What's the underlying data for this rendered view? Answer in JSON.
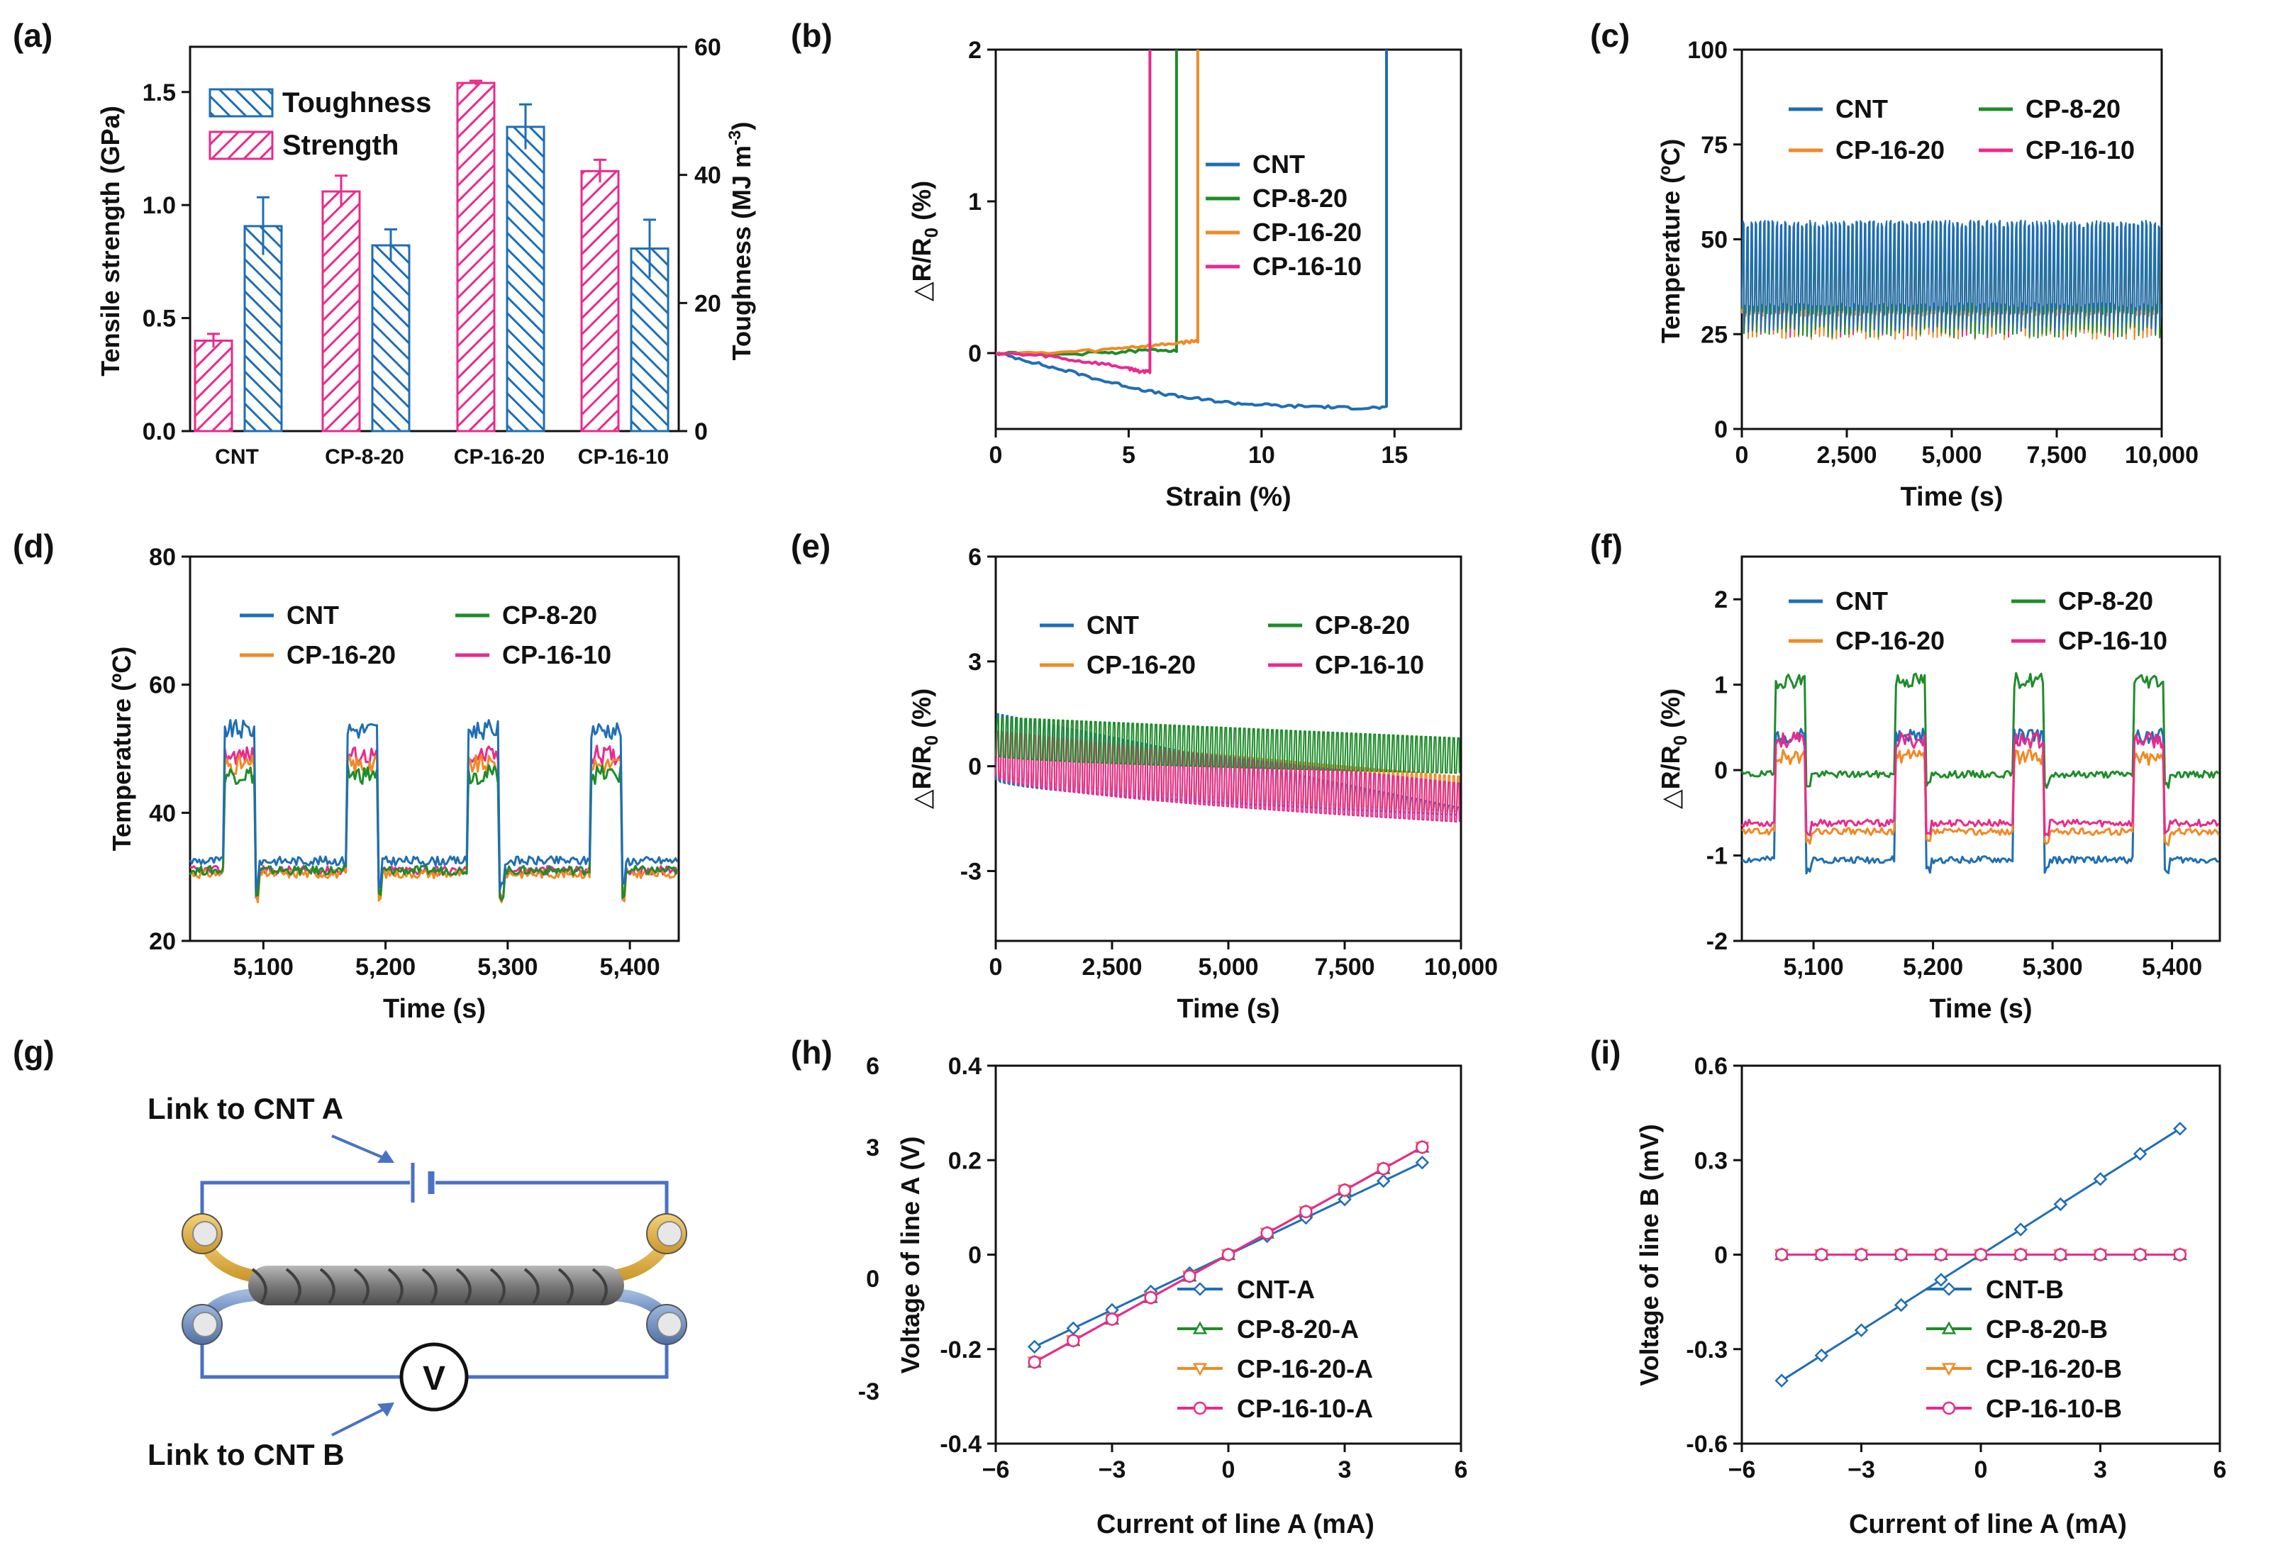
{
  "colors": {
    "CNT": "#1f6eb5",
    "CP-8-20": "#1e8c2a",
    "CP-16-20": "#f08a24",
    "CP-16-10": "#ea2a8c",
    "strength": "#ea2a8c",
    "toughness": "#1f6eb5",
    "wire": "#4a72c4"
  },
  "chart_data": [
    {
      "panel": "(a)",
      "type": "bar",
      "categories": [
        "CNT",
        "CP-8-20",
        "CP-16-20",
        "CP-16-10"
      ],
      "series": [
        {
          "name": "Strength",
          "axis": "left",
          "values": [
            0.4,
            1.06,
            1.54,
            1.15
          ],
          "errors": [
            0.03,
            0.07,
            0.01,
            0.05
          ]
        },
        {
          "name": "Toughness",
          "axis": "right",
          "values": [
            32,
            29,
            47.5,
            28.5
          ],
          "errors": [
            4.5,
            2.5,
            3.5,
            4.5
          ]
        }
      ],
      "xlabel": "",
      "ylabel": "Tensile strength (GPa)",
      "ylim": [
        0,
        1.7
      ],
      "yticks": [
        "0.0",
        "0.5",
        "1.0",
        "1.5"
      ],
      "y2label": "Toughness (MJ m",
      "y2label_sup": "-3",
      "y2label_end": ")",
      "y2lim": [
        0,
        60
      ],
      "y2ticks": [
        "0",
        "20",
        "40",
        "60"
      ]
    },
    {
      "panel": "(b)",
      "type": "line",
      "xlabel": "Strain (%)",
      "ylabel": "△R/R",
      "ylabel_sub": "0",
      "ylabel_end": " (%)",
      "xlim": [
        0,
        17.5
      ],
      "ylim": [
        -0.5,
        2
      ],
      "xticks": [
        "0",
        "5",
        "10",
        "15"
      ],
      "yticks": [
        "0",
        "1",
        "2"
      ],
      "legend": [
        "CNT",
        "CP-8-20",
        "CP-16-20",
        "CP-16-10"
      ],
      "series": [
        {
          "name": "CNT",
          "x": [
            0,
            1,
            2,
            3,
            4,
            5,
            6,
            7,
            8,
            9,
            10,
            11,
            12,
            13,
            14,
            14.7,
            14.7
          ],
          "y": [
            0,
            -0.04,
            -0.09,
            -0.13,
            -0.18,
            -0.22,
            -0.26,
            -0.29,
            -0.31,
            -0.33,
            -0.34,
            -0.35,
            -0.35,
            -0.36,
            -0.36,
            -0.36,
            2
          ]
        },
        {
          "name": "CP-8-20",
          "x": [
            0,
            2,
            4,
            5,
            6,
            6.8,
            6.8
          ],
          "y": [
            0,
            -0.01,
            0.0,
            0.01,
            0.02,
            0.02,
            2
          ]
        },
        {
          "name": "CP-16-20",
          "x": [
            0,
            2,
            4,
            5,
            6,
            7,
            7.6,
            7.6
          ],
          "y": [
            0,
            0.0,
            0.02,
            0.04,
            0.05,
            0.07,
            0.08,
            2
          ]
        },
        {
          "name": "CP-16-10",
          "x": [
            0,
            1,
            2,
            3,
            4,
            5,
            5.4,
            5.8,
            5.8
          ],
          "y": [
            0,
            -0.01,
            -0.02,
            -0.05,
            -0.07,
            -0.1,
            -0.12,
            -0.12,
            2
          ]
        }
      ]
    },
    {
      "panel": "(c)",
      "type": "line",
      "xlabel": "Time (s)",
      "ylabel": "Temperature (ºC)",
      "xlim": [
        0,
        10000
      ],
      "ylim": [
        0,
        100
      ],
      "xticks": [
        "0",
        "2,500",
        "5,000",
        "7,500",
        "10,000"
      ],
      "yticks": [
        "0",
        "25",
        "50",
        "75",
        "100"
      ],
      "legend": [
        "CNT",
        "CP-8-20",
        "CP-16-20",
        "CP-16-10"
      ],
      "series": [
        {
          "name": "CNT",
          "baseline": 32.5,
          "peak": 54
        },
        {
          "name": "CP-8-20",
          "baseline": 31,
          "peak": 47
        },
        {
          "name": "CP-16-20",
          "baseline": 30.5,
          "peak": 48
        },
        {
          "name": "CP-16-10",
          "baseline": 31,
          "peak": 49
        }
      ]
    },
    {
      "panel": "(d)",
      "type": "line",
      "xlabel": "Time (s)",
      "ylabel": "Temperature (ºC)",
      "xlim": [
        5040,
        5440
      ],
      "ylim": [
        20,
        80
      ],
      "xticks": [
        "5,100",
        "5,200",
        "5,300",
        "5,400"
      ],
      "yticks": [
        "20",
        "40",
        "60",
        "80"
      ],
      "legend": [
        "CNT",
        "CP-8-20",
        "CP-16-20",
        "CP-16-10"
      ],
      "on_intervals": [
        [
          5068,
          5093
        ],
        [
          5168,
          5193
        ],
        [
          5268,
          5293
        ],
        [
          5368,
          5393
        ]
      ],
      "series": [
        {
          "name": "CNT",
          "baseline": 32.5,
          "peak": 53
        },
        {
          "name": "CP-8-20",
          "baseline": 31,
          "peak": 46
        },
        {
          "name": "CP-16-20",
          "baseline": 30.5,
          "peak": 47.5
        },
        {
          "name": "CP-16-10",
          "baseline": 31,
          "peak": 49
        }
      ]
    },
    {
      "panel": "(e)",
      "type": "line",
      "xlabel": "Time (s)",
      "ylabel": "△R/R",
      "ylabel_sub": "0",
      "ylabel_end": " (%)",
      "xlim": [
        0,
        10000
      ],
      "ylim": [
        -5,
        6
      ],
      "xticks": [
        "0",
        "2,500",
        "5,000",
        "7,500",
        "10,000"
      ],
      "yticks": [
        "-3",
        "0",
        "3",
        "6"
      ],
      "legend": [
        "CNT",
        "CP-8-20",
        "CP-16-20",
        "CP-16-10"
      ],
      "series": [
        {
          "name": "CNT",
          "low_start": -0.4,
          "low_end": -1.4,
          "high_start": 1.5,
          "high_end": -1.2
        },
        {
          "name": "CP-8-20",
          "low_start": 0.3,
          "low_end": -0.2,
          "high_start": 1.4,
          "high_end": 0.8
        },
        {
          "name": "CP-16-20",
          "low_start": -0.2,
          "low_end": -1.3,
          "high_start": 0.9,
          "high_end": -0.3
        },
        {
          "name": "CP-16-10",
          "low_start": -0.3,
          "low_end": -1.6,
          "high_start": 1.0,
          "high_end": -0.5
        }
      ]
    },
    {
      "panel": "(f)",
      "type": "line",
      "xlabel": "Time (s)",
      "ylabel": "△R/R",
      "ylabel_sub": "0",
      "ylabel_end": " (%)",
      "xlim": [
        5040,
        5440
      ],
      "ylim": [
        -2,
        2.5
      ],
      "xticks": [
        "5,100",
        "5,200",
        "5,300",
        "5,400"
      ],
      "yticks": [
        "-2",
        "-1",
        "0",
        "1",
        "2"
      ],
      "legend": [
        "CNT",
        "CP-8-20",
        "CP-16-20",
        "CP-16-10"
      ],
      "on_intervals": [
        [
          5068,
          5093
        ],
        [
          5168,
          5193
        ],
        [
          5268,
          5293
        ],
        [
          5368,
          5393
        ]
      ],
      "series": [
        {
          "name": "CNT",
          "baseline": -1.05,
          "peak": 0.4
        },
        {
          "name": "CP-8-20",
          "baseline": -0.05,
          "peak": 1.05
        },
        {
          "name": "CP-16-20",
          "baseline": -0.72,
          "peak": 0.15
        },
        {
          "name": "CP-16-10",
          "baseline": -0.62,
          "peak": 0.35
        }
      ]
    },
    {
      "panel": "(h)",
      "type": "line",
      "xlabel": "Current of line A (mA)",
      "ylabel": "Voltage of line A (V)",
      "xlim": [
        -6,
        6
      ],
      "ylim": [
        -0.4,
        0.4
      ],
      "xticks": [
        "−6",
        "−3",
        "0",
        "3",
        "6"
      ],
      "yticks": [
        "-0.4",
        "-0.2",
        "0",
        "0.2",
        "0.4"
      ],
      "y2ticks": [
        "-3",
        "0",
        "3",
        "6"
      ],
      "legend": [
        "CNT-A",
        "CP-8-20-A",
        "CP-16-20-A",
        "CP-16-10-A"
      ],
      "x": [
        -5,
        -4,
        -3,
        -2,
        -1,
        0,
        1,
        2,
        3,
        4,
        5
      ],
      "series": [
        {
          "name": "CNT-A",
          "slope": 0.039
        },
        {
          "name": "CP-8-20-A",
          "slope": 0.0455
        },
        {
          "name": "CP-16-20-A",
          "slope": 0.0455
        },
        {
          "name": "CP-16-10-A",
          "slope": 0.0455
        }
      ]
    },
    {
      "panel": "(i)",
      "type": "line",
      "xlabel": "Current of line A (mA)",
      "ylabel": "Voltage of line B (mV)",
      "xlim": [
        -6,
        6
      ],
      "ylim": [
        -0.6,
        0.6
      ],
      "xticks": [
        "−6",
        "−3",
        "0",
        "3",
        "6"
      ],
      "yticks": [
        "-0.6",
        "-0.3",
        "0",
        "0.3",
        "0.6"
      ],
      "legend": [
        "CNT-B",
        "CP-8-20-B",
        "CP-16-20-B",
        "CP-16-10-B"
      ],
      "x": [
        -5,
        -4,
        -3,
        -2,
        -1,
        0,
        1,
        2,
        3,
        4,
        5
      ],
      "series": [
        {
          "name": "CNT-B",
          "slope": 0.08
        },
        {
          "name": "CP-8-20-B",
          "slope": 0
        },
        {
          "name": "CP-16-20-B",
          "slope": 0
        },
        {
          "name": "CP-16-10-B",
          "slope": 0
        }
      ]
    }
  ],
  "diagram": {
    "panel": "(g)",
    "label_a": "Link to CNT A",
    "label_b": "Link to CNT B",
    "meter": "V"
  }
}
